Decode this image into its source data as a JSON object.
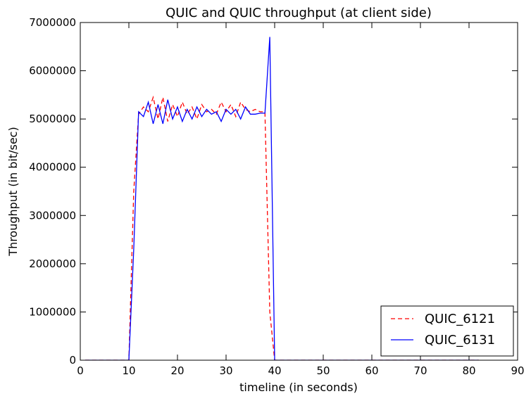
{
  "chart_data": {
    "type": "line",
    "title": "QUIC and QUIC throughput (at client side)",
    "xlabel": "timeline (in seconds)",
    "ylabel": "Throughput (in bit/sec)",
    "xlim": [
      0,
      90
    ],
    "ylim": [
      0,
      7000000
    ],
    "xticks": [
      0,
      10,
      20,
      30,
      40,
      50,
      60,
      70,
      80,
      90
    ],
    "xtick_labels": [
      "0",
      "10",
      "20",
      "30",
      "40",
      "50",
      "60",
      "70",
      "80",
      "90"
    ],
    "yticks": [
      0,
      1000000,
      2000000,
      3000000,
      4000000,
      5000000,
      6000000,
      7000000
    ],
    "ytick_labels": [
      "0",
      "1000000",
      "2000000",
      "3000000",
      "4000000",
      "5000000",
      "6000000",
      "7000000"
    ],
    "grid": false,
    "legend_position": "lower-right",
    "series": [
      {
        "name": "QUIC_6121",
        "color": "#ff0000",
        "style": "dashed",
        "x": [
          1,
          2,
          3,
          4,
          5,
          6,
          7,
          8,
          9,
          10,
          11,
          12,
          13,
          14,
          15,
          16,
          17,
          18,
          19,
          20,
          21,
          22,
          23,
          24,
          25,
          26,
          27,
          28,
          29,
          30,
          31,
          32,
          33,
          34,
          35,
          36,
          37,
          38,
          39,
          40,
          41,
          42,
          43,
          44,
          45,
          46,
          47,
          48,
          49,
          50,
          51,
          52,
          53,
          54,
          55,
          56,
          57,
          58,
          59,
          60,
          61,
          62,
          63,
          64,
          65,
          66,
          67,
          68,
          69,
          70,
          71,
          72,
          73,
          74,
          75,
          76,
          77,
          78,
          79,
          80,
          81,
          82
        ],
        "y": [
          0,
          0,
          0,
          0,
          0,
          0,
          0,
          0,
          0,
          0,
          3500000,
          5100000,
          5250000,
          5150000,
          5450000,
          5000000,
          5450000,
          4950000,
          5300000,
          5050000,
          5350000,
          5100000,
          5250000,
          5000000,
          5300000,
          5150000,
          5200000,
          5100000,
          5350000,
          5150000,
          5300000,
          5050000,
          5350000,
          5200000,
          5150000,
          5200000,
          5150000,
          5150000,
          1000000,
          0,
          0,
          0,
          0,
          0,
          0,
          0,
          0,
          0,
          0,
          0,
          0,
          0,
          0,
          0,
          0,
          0,
          0,
          0,
          0,
          0,
          0,
          0,
          0,
          0,
          0,
          0,
          0,
          0,
          0,
          0,
          0,
          0,
          0,
          0,
          0,
          0,
          0,
          0,
          0,
          0,
          0,
          0
        ]
      },
      {
        "name": "QUIC_6131",
        "color": "#0000ff",
        "style": "solid",
        "x": [
          1,
          2,
          3,
          4,
          5,
          6,
          7,
          8,
          9,
          10,
          11,
          12,
          13,
          14,
          15,
          16,
          17,
          18,
          19,
          20,
          21,
          22,
          23,
          24,
          25,
          26,
          27,
          28,
          29,
          30,
          31,
          32,
          33,
          34,
          35,
          36,
          37,
          38,
          39,
          40,
          41,
          42,
          43,
          44,
          45,
          46,
          47,
          48,
          49,
          50,
          51,
          52,
          53,
          54,
          55,
          56,
          57,
          58,
          59,
          60,
          61,
          62,
          63,
          64,
          65,
          66,
          67,
          68,
          69,
          70,
          71,
          72,
          73,
          74,
          75,
          76,
          77,
          78,
          79,
          80,
          81,
          82
        ],
        "y": [
          0,
          0,
          0,
          0,
          0,
          0,
          0,
          0,
          0,
          0,
          2300000,
          5150000,
          5050000,
          5350000,
          4900000,
          5300000,
          4900000,
          5400000,
          5000000,
          5250000,
          4950000,
          5200000,
          5000000,
          5250000,
          5050000,
          5200000,
          5100000,
          5150000,
          4950000,
          5200000,
          5100000,
          5200000,
          5000000,
          5250000,
          5100000,
          5100000,
          5120000,
          5120000,
          6700000,
          0,
          0,
          0,
          0,
          0,
          0,
          0,
          0,
          0,
          0,
          0,
          0,
          0,
          0,
          0,
          0,
          0,
          0,
          0,
          0,
          0,
          0,
          0,
          0,
          0,
          0,
          0,
          0,
          0,
          0,
          0,
          0,
          0,
          0,
          0,
          0,
          0,
          0,
          0,
          0,
          0,
          0,
          0
        ]
      }
    ]
  }
}
